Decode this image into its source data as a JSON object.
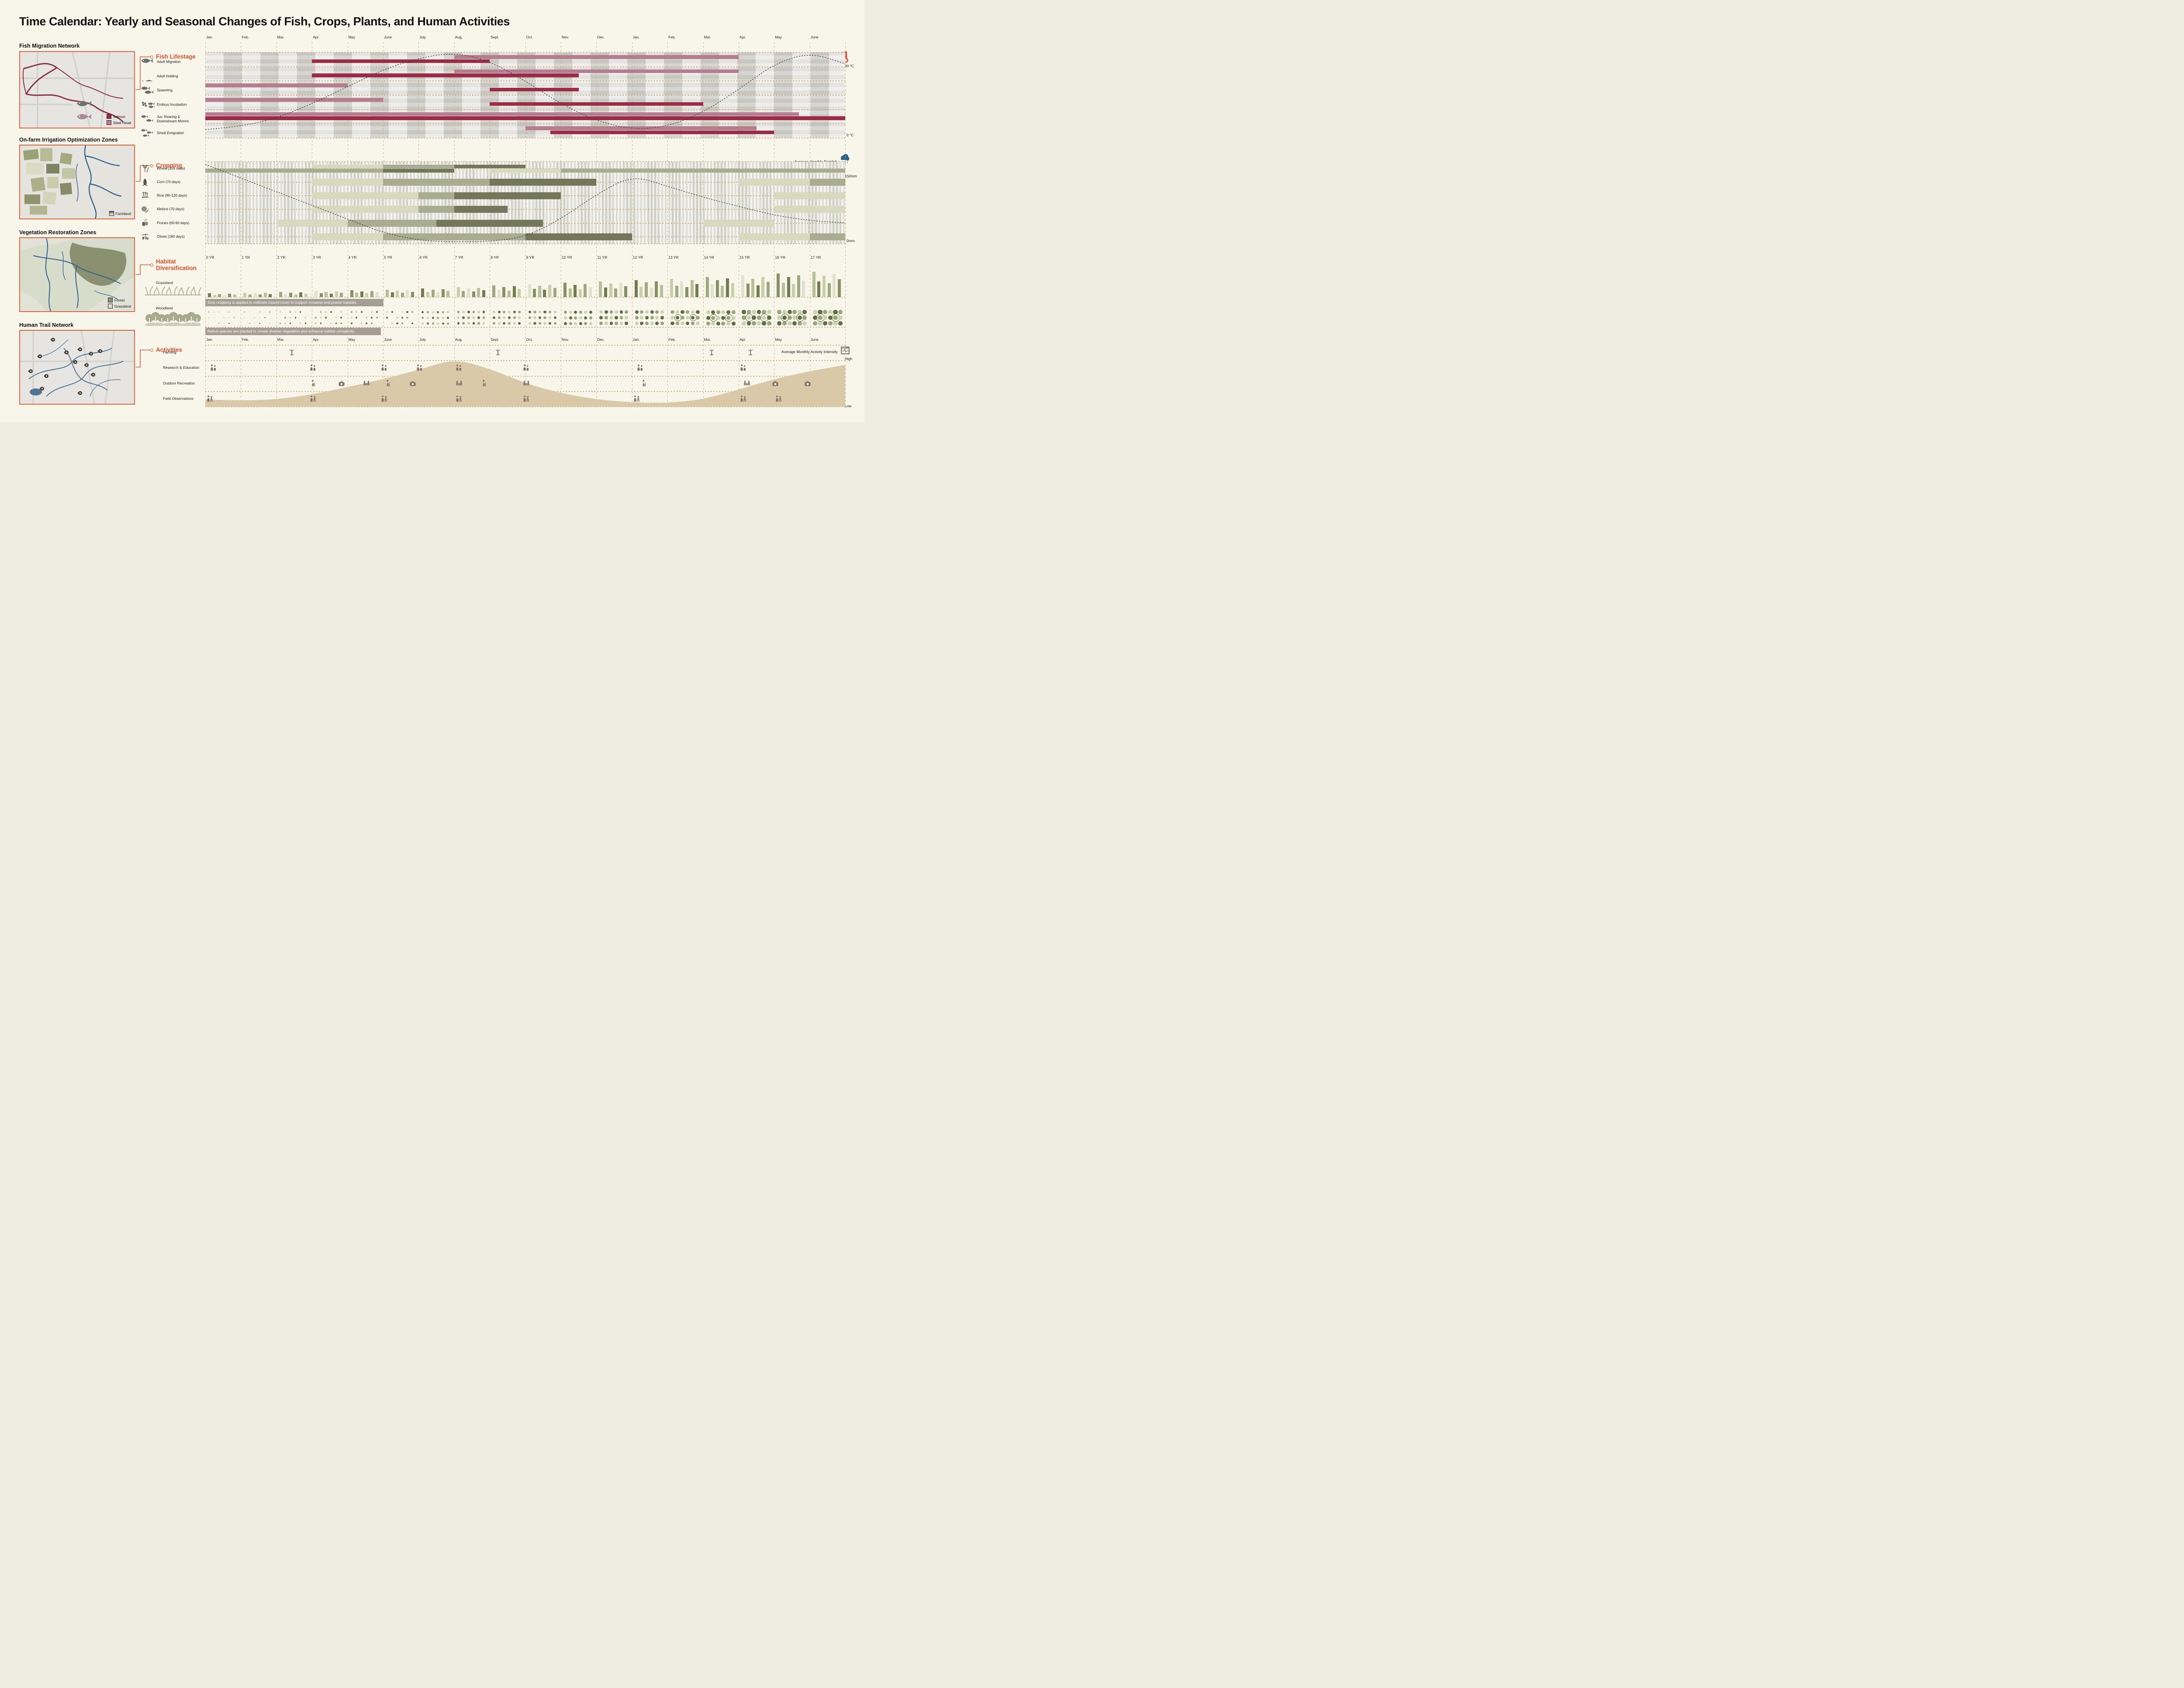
{
  "title": "Time Calendar: Yearly and Seasonal Changes of Fish, Crops, Plants, and Human Activities",
  "accent_color": "#e84e28",
  "maps": [
    {
      "title": "Fish Migration Network",
      "legend": [
        {
          "label": "Salmon",
          "color": "#9c2b45"
        },
        {
          "label": "Steel Head",
          "color": "#b57e90"
        }
      ]
    },
    {
      "title": "On-farm Irrigation Optimization Zones",
      "legend": [
        {
          "label": "Farmland",
          "color": "striped"
        }
      ]
    },
    {
      "title": "Vegetation Restoration Zones",
      "legend": [
        {
          "label": "Forest",
          "color": "#8a9070"
        },
        {
          "label": "Grassland",
          "color": "#d7dccb"
        }
      ]
    },
    {
      "title": "Human Trail Network",
      "legend": [],
      "pins": [
        [
          0.28,
          0.1
        ],
        [
          0.16,
          0.34
        ],
        [
          0.4,
          0.28
        ],
        [
          0.52,
          0.24
        ],
        [
          0.62,
          0.3
        ],
        [
          0.7,
          0.26
        ],
        [
          0.48,
          0.42
        ],
        [
          0.58,
          0.46
        ],
        [
          0.08,
          0.55
        ],
        [
          0.22,
          0.62
        ],
        [
          0.64,
          0.6
        ],
        [
          0.18,
          0.8
        ],
        [
          0.52,
          0.86
        ]
      ]
    }
  ],
  "chart_data": {
    "type": "timeline",
    "x_months": [
      "Jan.",
      "Feb.",
      "Mar.",
      "Apr.",
      "May",
      "June",
      "July",
      "Aug.",
      "Sept.",
      "Oct.",
      "Nov.",
      "Dec.",
      "Jan.",
      "Feb.",
      "Mar.",
      "Apr.",
      "May",
      "June"
    ],
    "fish": {
      "header": "Fish Lifestage",
      "rows": [
        {
          "label": "Adult Migration",
          "icon": "adult-migration-icon"
        },
        {
          "label": "Adult Holding",
          "icon": "adult-holding-icon"
        },
        {
          "label": "Spawning",
          "icon": "spawning-icon"
        },
        {
          "label": "Embryo Incubation",
          "icon": "embryo-incubation-icon"
        },
        {
          "label": "Juv. Rearing &\nDownstream Mvmnt.",
          "icon": "juvenile-rearing-icon"
        },
        {
          "label": "Smolt Emigration",
          "icon": "smolt-emigration-icon"
        }
      ],
      "colors": {
        "salmon": "#9c2b45",
        "steelhead": "#b57e90"
      },
      "bars": [
        {
          "row": 0,
          "species": "steelhead",
          "start": 7,
          "end": 15
        },
        {
          "row": 0,
          "species": "salmon",
          "start": 3,
          "end": 8
        },
        {
          "row": 1,
          "species": "steelhead",
          "start": 7,
          "end": 15
        },
        {
          "row": 1,
          "species": "salmon",
          "start": 3,
          "end": 10.5
        },
        {
          "row": 2,
          "species": "steelhead",
          "start": 0,
          "end": 4
        },
        {
          "row": 2,
          "species": "salmon",
          "start": 8,
          "end": 10.5
        },
        {
          "row": 3,
          "species": "steelhead",
          "start": 0,
          "end": 5
        },
        {
          "row": 3,
          "species": "salmon",
          "start": 8,
          "end": 14
        },
        {
          "row": 4,
          "species": "steelhead",
          "start": 0,
          "end": 16.7
        },
        {
          "row": 4,
          "species": "salmon",
          "start": 0,
          "end": 18
        },
        {
          "row": 5,
          "species": "steelhead",
          "start": 9,
          "end": 15.5
        },
        {
          "row": 5,
          "species": "salmon",
          "start": 9.7,
          "end": 16
        }
      ],
      "temperature": {
        "label": "Average Monthly Temperature",
        "max_label": "30 °C",
        "min_label": "0 °C",
        "unit": "°C",
        "values": [
          3,
          4,
          7,
          12,
          18,
          24,
          28,
          30,
          27,
          20,
          12,
          6,
          3,
          4,
          9,
          17,
          26,
          30,
          26
        ]
      }
    },
    "cropping": {
      "header": "Cropping",
      "rows": [
        {
          "label": "Wheat (105 days)",
          "icon": "wheat-icon"
        },
        {
          "label": "Corn (70 days)",
          "icon": "corn-icon"
        },
        {
          "label": "Rice (90-120 days)",
          "icon": "rice-icon"
        },
        {
          "label": "Melons (70 days)",
          "icon": "melons-icon"
        },
        {
          "label": "Prunes (60-90 days)",
          "icon": "prunes-icon"
        },
        {
          "label": "Olives (180 days)",
          "icon": "olives-icon"
        }
      ],
      "wheat_sub_labels": [
        "Spring",
        "Winter"
      ],
      "shades": {
        "light": "#d7dabf",
        "medium": "#a8ad92",
        "dark": "#73785a"
      },
      "bars": [
        {
          "row": 0,
          "sub": 0,
          "shade": "light",
          "start": 3,
          "end": 5
        },
        {
          "row": 0,
          "sub": 0,
          "shade": "medium",
          "start": 5,
          "end": 7
        },
        {
          "row": 0,
          "sub": 0,
          "shade": "dark",
          "start": 7,
          "end": 9
        },
        {
          "row": 0,
          "sub": 1,
          "shade": "medium",
          "start": 0,
          "end": 5
        },
        {
          "row": 0,
          "sub": 1,
          "shade": "dark",
          "start": 5,
          "end": 7
        },
        {
          "row": 0,
          "sub": 1,
          "shade": "light",
          "start": 8,
          "end": 10
        },
        {
          "row": 0,
          "sub": 1,
          "shade": "medium",
          "start": 10,
          "end": 18
        },
        {
          "row": 1,
          "shade": "light",
          "start": 3,
          "end": 5
        },
        {
          "row": 1,
          "shade": "medium",
          "start": 5,
          "end": 8
        },
        {
          "row": 1,
          "shade": "dark",
          "start": 8,
          "end": 11
        },
        {
          "row": 1,
          "shade": "light",
          "start": 15,
          "end": 17
        },
        {
          "row": 1,
          "shade": "medium",
          "start": 17,
          "end": 18
        },
        {
          "row": 2,
          "shade": "light",
          "start": 3,
          "end": 6
        },
        {
          "row": 2,
          "shade": "medium",
          "start": 6,
          "end": 7
        },
        {
          "row": 2,
          "shade": "dark",
          "start": 7,
          "end": 10
        },
        {
          "row": 2,
          "shade": "light",
          "start": 16,
          "end": 18
        },
        {
          "row": 3,
          "shade": "light",
          "start": 3,
          "end": 6
        },
        {
          "row": 3,
          "shade": "medium",
          "start": 6,
          "end": 7
        },
        {
          "row": 3,
          "shade": "dark",
          "start": 7,
          "end": 8.5
        },
        {
          "row": 3,
          "shade": "light",
          "start": 16,
          "end": 18
        },
        {
          "row": 4,
          "shade": "light",
          "start": 2,
          "end": 4
        },
        {
          "row": 4,
          "shade": "medium",
          "start": 4,
          "end": 6.5
        },
        {
          "row": 4,
          "shade": "dark",
          "start": 6.5,
          "end": 9.5
        },
        {
          "row": 4,
          "shade": "light",
          "start": 14,
          "end": 16
        },
        {
          "row": 5,
          "shade": "light",
          "start": 3,
          "end": 5
        },
        {
          "row": 5,
          "shade": "medium",
          "start": 5,
          "end": 9
        },
        {
          "row": 5,
          "shade": "dark",
          "start": 9,
          "end": 12
        },
        {
          "row": 5,
          "shade": "light",
          "start": 15,
          "end": 17
        },
        {
          "row": 5,
          "shade": "medium",
          "start": 17,
          "end": 18
        }
      ],
      "rainfall": {
        "label": "Average Monthly Rainfall",
        "max_label": "150mm",
        "min_label": "0mm",
        "unit": "mm",
        "values": [
          145,
          120,
          95,
          70,
          45,
          20,
          6,
          3,
          4,
          12,
          45,
          90,
          125,
          105,
          85,
          68,
          52,
          42,
          38
        ]
      }
    },
    "habitat": {
      "header": "Habitat Diversification",
      "years": [
        "0 YR",
        "1 YR",
        "2 YR",
        "3 YR",
        "4 YR",
        "5 YR",
        "6 YR",
        "7 YR",
        "8 YR",
        "9 YR",
        "10 YR",
        "11 YR",
        "12 YR",
        "13 YR",
        "14 YR",
        "15 YR",
        "16 YR",
        "17 YR"
      ],
      "rows": [
        {
          "label": "Grassland",
          "icon": "grassland-icon"
        },
        {
          "label": "Woodland",
          "icon": "woodland-icon"
        }
      ],
      "grassland_growth": [
        0.15,
        0.18,
        0.2,
        0.24,
        0.27,
        0.3,
        0.34,
        0.4,
        0.46,
        0.52,
        0.57,
        0.62,
        0.68,
        0.73,
        0.8,
        0.86,
        0.93,
        1.0
      ],
      "woodland_growth": [
        1.2,
        1.4,
        1.6,
        1.8,
        2.0,
        2.2,
        2.5,
        2.8,
        3.0,
        3.2,
        3.5,
        3.8,
        4.0,
        4.2,
        4.5,
        4.8,
        5.0,
        5.2
      ],
      "bar_colors": [
        "#6f7d4f",
        "#c9cfa8",
        "#9fa87e",
        "#e0e3cc",
        "#879264",
        "#b8bf97"
      ],
      "dot_colors": [
        "#5c6d44",
        "#98a578",
        "#cbd2af"
      ],
      "captions": [
        "Strip cropping is applied to cultivate topsoil cover to support meadow and prairie habitats.",
        "Native species are planted to create diverse vegetation and enhance habitat complexity."
      ]
    },
    "activities": {
      "header": "Activities",
      "rows": [
        {
          "label": "Farming"
        },
        {
          "label": "Research & Education"
        },
        {
          "label": "Outdoor Recreation"
        },
        {
          "label": "Field Observations"
        }
      ],
      "icons": [
        {
          "row": 0,
          "month": 2.3,
          "type": "sprinkler"
        },
        {
          "row": 0,
          "month": 8.1,
          "type": "sprinkler"
        },
        {
          "row": 0,
          "month": 14.1,
          "type": "sprinkler"
        },
        {
          "row": 0,
          "month": 15.2,
          "type": "sprinkler"
        },
        {
          "row": 1,
          "month": 0.1,
          "type": "people"
        },
        {
          "row": 1,
          "month": 2.9,
          "type": "people"
        },
        {
          "row": 1,
          "month": 4.9,
          "type": "people"
        },
        {
          "row": 1,
          "month": 5.9,
          "type": "people"
        },
        {
          "row": 1,
          "month": 7.0,
          "type": "people"
        },
        {
          "row": 1,
          "month": 8.9,
          "type": "people"
        },
        {
          "row": 1,
          "month": 12.1,
          "type": "people"
        },
        {
          "row": 1,
          "month": 15.0,
          "type": "people"
        },
        {
          "row": 2,
          "month": 2.9,
          "type": "hiker"
        },
        {
          "row": 2,
          "month": 3.7,
          "type": "camera"
        },
        {
          "row": 2,
          "month": 4.4,
          "type": "picnic"
        },
        {
          "row": 2,
          "month": 5.0,
          "type": "hiker"
        },
        {
          "row": 2,
          "month": 5.7,
          "type": "camera"
        },
        {
          "row": 2,
          "month": 7.0,
          "type": "picnic"
        },
        {
          "row": 2,
          "month": 7.7,
          "type": "hiker"
        },
        {
          "row": 2,
          "month": 8.9,
          "type": "picnic"
        },
        {
          "row": 2,
          "month": 12.2,
          "type": "hiker"
        },
        {
          "row": 2,
          "month": 15.1,
          "type": "picnic"
        },
        {
          "row": 2,
          "month": 15.9,
          "type": "camera"
        },
        {
          "row": 2,
          "month": 16.8,
          "type": "camera"
        },
        {
          "row": 3,
          "month": 0.0,
          "type": "tripod"
        },
        {
          "row": 3,
          "month": 2.9,
          "type": "tripod"
        },
        {
          "row": 3,
          "month": 4.9,
          "type": "tripod"
        },
        {
          "row": 3,
          "month": 7.0,
          "type": "tripod"
        },
        {
          "row": 3,
          "month": 8.9,
          "type": "tripod"
        },
        {
          "row": 3,
          "month": 12.0,
          "type": "tripod"
        },
        {
          "row": 3,
          "month": 15.0,
          "type": "tripod"
        },
        {
          "row": 3,
          "month": 16.0,
          "type": "tripod"
        }
      ],
      "intensity": {
        "label": "Average Monthly Activity Intensity",
        "max_label": "High",
        "min_label": "Low",
        "values": [
          0.12,
          0.1,
          0.12,
          0.2,
          0.32,
          0.45,
          0.6,
          0.78,
          0.62,
          0.38,
          0.22,
          0.12,
          0.07,
          0.06,
          0.12,
          0.28,
          0.45,
          0.58,
          0.68
        ]
      }
    }
  }
}
